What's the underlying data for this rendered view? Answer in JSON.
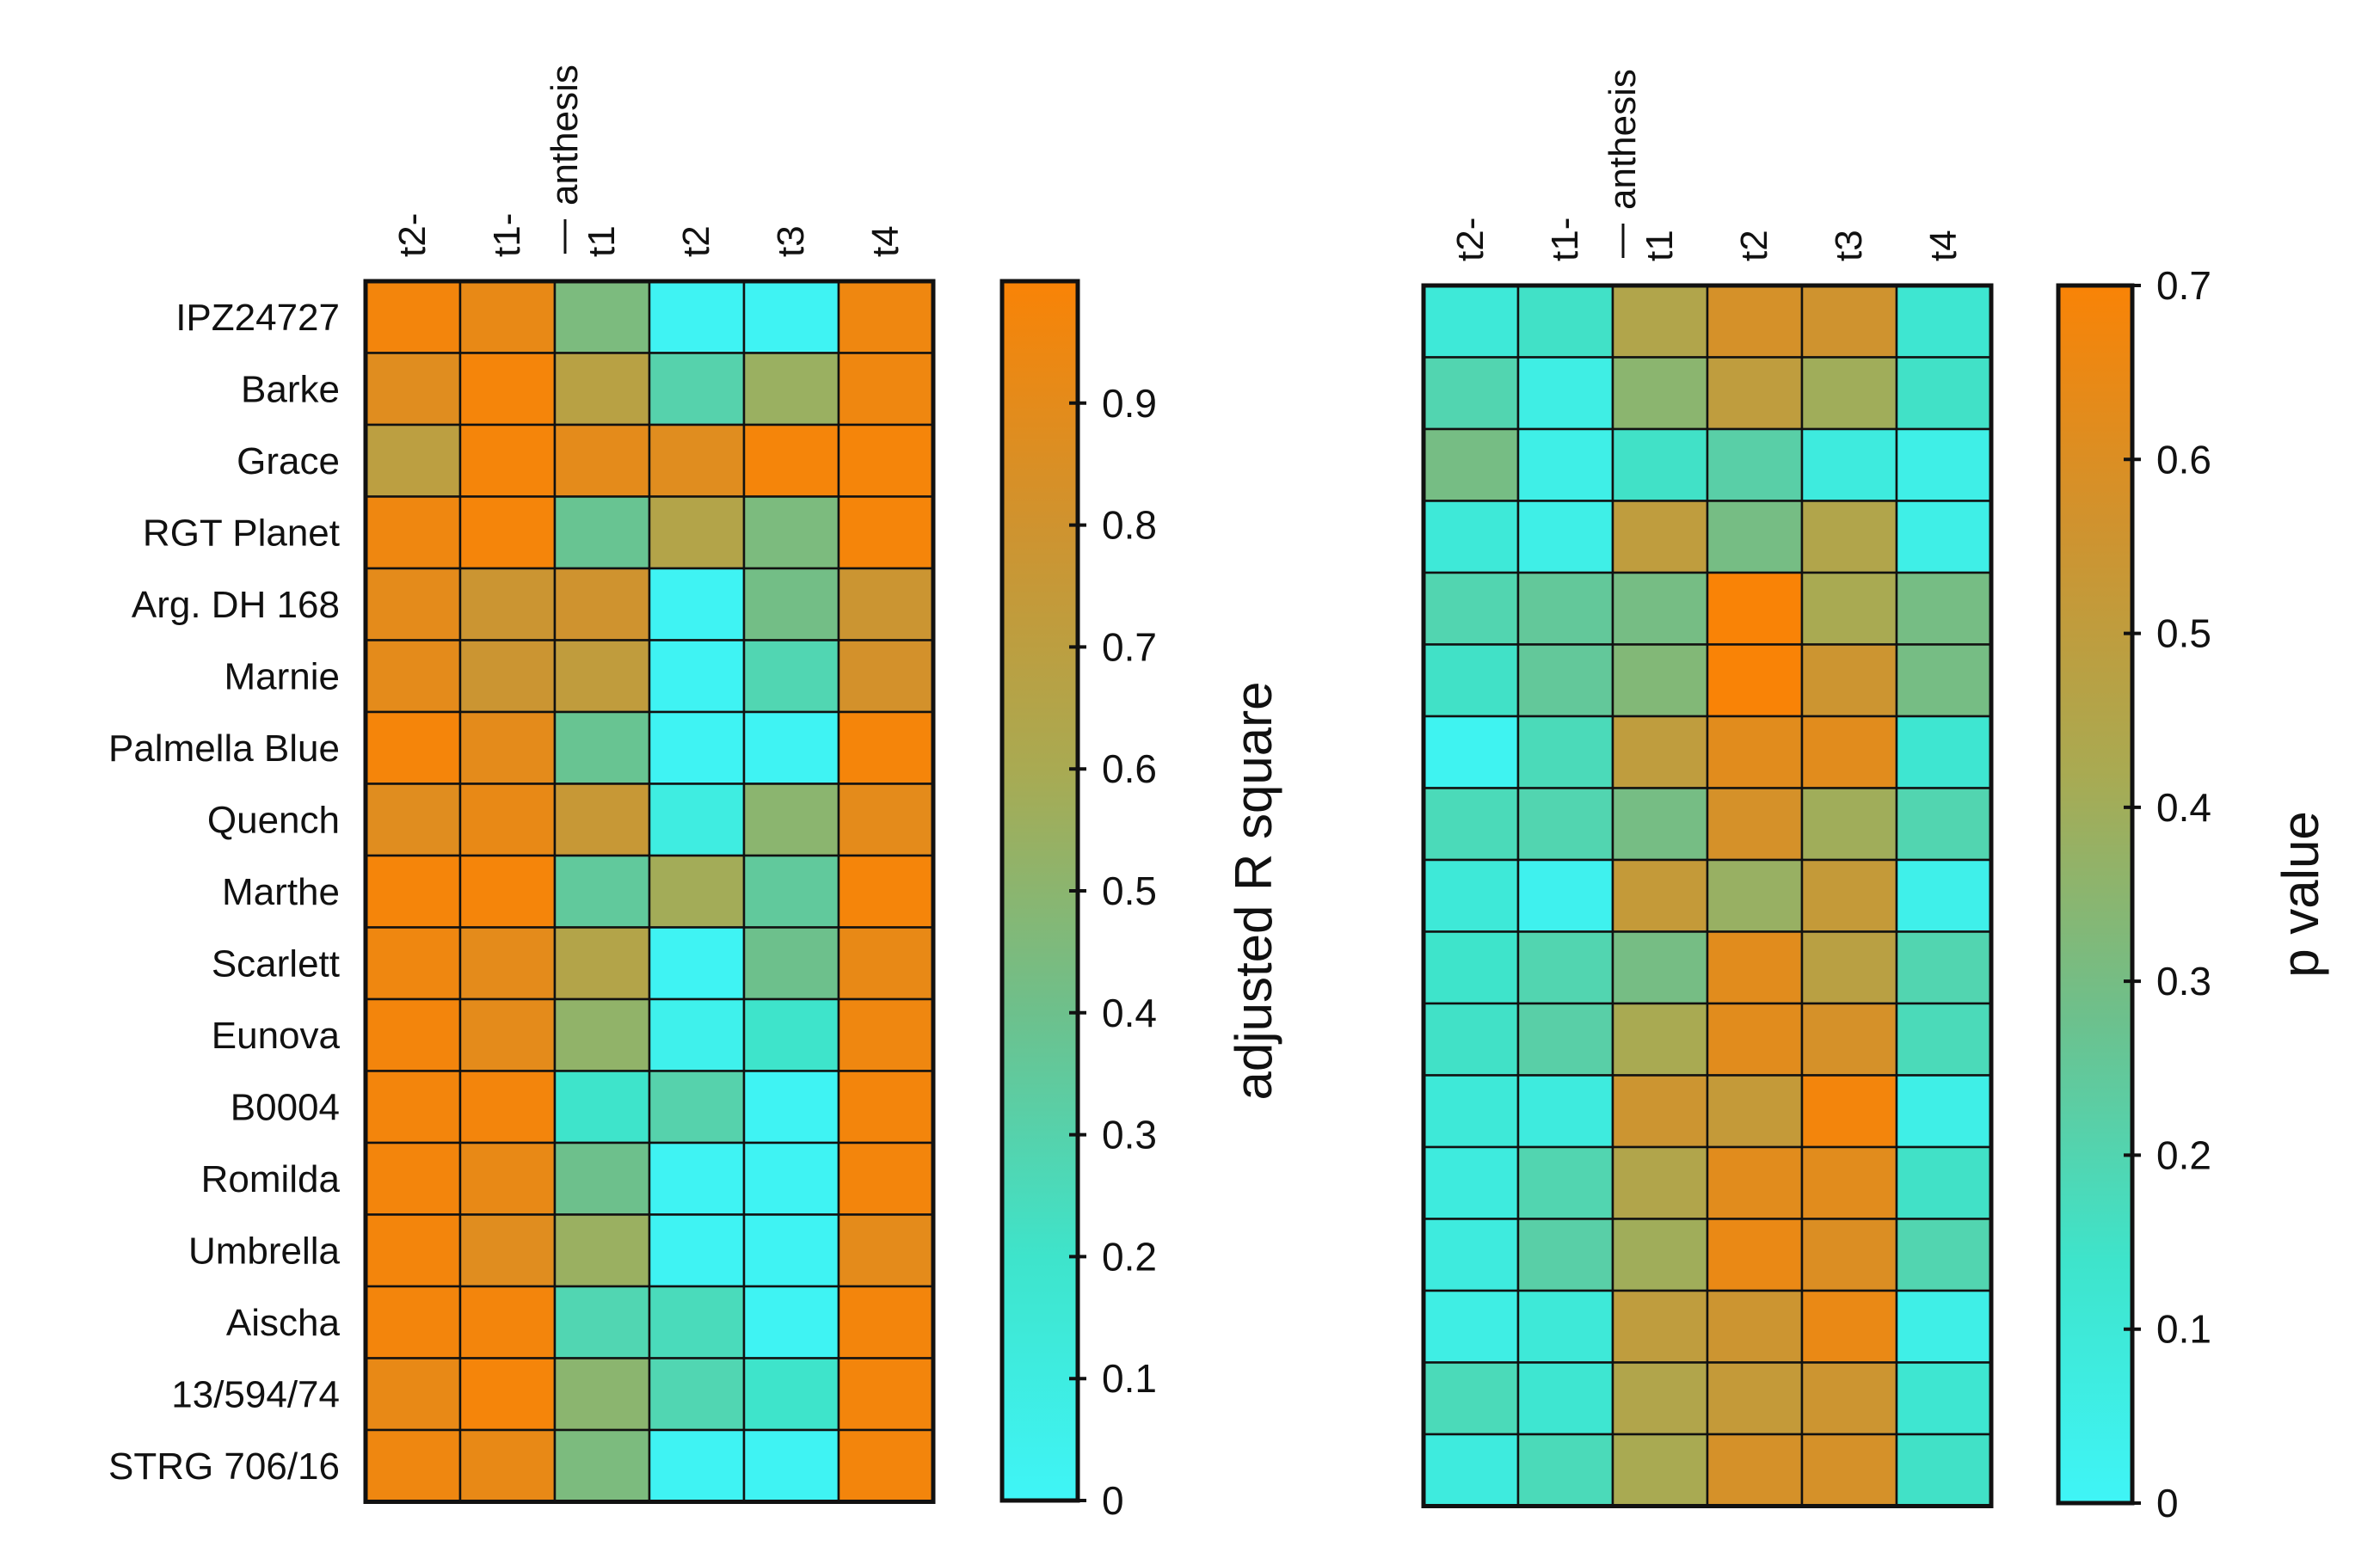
{
  "chart_data": [
    {
      "type": "heatmap",
      "title": "",
      "rows": [
        "IPZ24727",
        "Barke",
        "Grace",
        "RGT Planet",
        "Arg. DH 168",
        "Marnie",
        "Palmella Blue",
        "Quench",
        "Marthe",
        "Scarlett",
        "Eunova",
        "B0004",
        "Romilda",
        "Umbrella",
        "Aischa",
        "13/594/74",
        "STRG 706/16"
      ],
      "columns": [
        "t2-",
        "t1-",
        "t1",
        "t2",
        "t3",
        "t4"
      ],
      "marker_label": "anthesis",
      "values": [
        [
          0.97,
          0.92,
          0.45,
          0.02,
          0.02,
          0.95
        ],
        [
          0.88,
          0.98,
          0.68,
          0.3,
          0.55,
          0.95
        ],
        [
          0.7,
          0.98,
          0.9,
          0.88,
          0.98,
          0.98
        ],
        [
          0.95,
          0.98,
          0.38,
          0.65,
          0.45,
          0.98
        ],
        [
          0.9,
          0.78,
          0.8,
          0.02,
          0.42,
          0.78
        ],
        [
          0.9,
          0.78,
          0.72,
          0.02,
          0.28,
          0.82
        ],
        [
          0.98,
          0.9,
          0.38,
          0.02,
          0.02,
          0.98
        ],
        [
          0.88,
          0.92,
          0.76,
          0.1,
          0.5,
          0.9
        ],
        [
          0.98,
          0.98,
          0.35,
          0.58,
          0.35,
          0.98
        ],
        [
          0.95,
          0.9,
          0.65,
          0.02,
          0.4,
          0.92
        ],
        [
          0.97,
          0.9,
          0.52,
          0.05,
          0.2,
          0.95
        ],
        [
          0.97,
          0.97,
          0.2,
          0.3,
          0.02,
          0.97
        ],
        [
          0.97,
          0.92,
          0.4,
          0.02,
          0.02,
          0.97
        ],
        [
          0.97,
          0.88,
          0.55,
          0.02,
          0.02,
          0.9
        ],
        [
          0.97,
          0.97,
          0.28,
          0.25,
          0.02,
          0.97
        ],
        [
          0.92,
          0.98,
          0.5,
          0.28,
          0.2,
          0.97
        ],
        [
          0.95,
          0.92,
          0.45,
          0.02,
          0.02,
          0.97
        ]
      ],
      "colorbar": {
        "label": "adjusted R square",
        "range": [
          0,
          1
        ],
        "ticks": [
          0,
          0.1,
          0.2,
          0.3,
          0.4,
          0.5,
          0.6,
          0.7,
          0.8,
          0.9
        ],
        "tick_labels": [
          "0",
          "0.1",
          "0.2",
          "0.3",
          "0.4",
          "0.5",
          "0.6",
          "0.7",
          "0.8",
          "0.9"
        ],
        "colors": [
          "#3ff5f7",
          "#3ee4cb",
          "#6dc08c",
          "#a9aa52",
          "#cf932f",
          "#f98306"
        ]
      }
    },
    {
      "type": "heatmap",
      "title": "",
      "rows": [
        "IPZ24727",
        "Barke",
        "Grace",
        "RGT Planet",
        "Arg. DH 168",
        "Marnie",
        "Palmella Blue",
        "Quench",
        "Marthe",
        "Scarlett",
        "Eunova",
        "B0004",
        "Romilda",
        "Umbrella",
        "Aischa",
        "13/594/74",
        "STRG 706/16"
      ],
      "columns": [
        "t2-",
        "t1-",
        "t1",
        "t2",
        "t3",
        "t4"
      ],
      "marker_label": "anthesis",
      "values": [
        [
          0.1,
          0.15,
          0.45,
          0.58,
          0.56,
          0.12
        ],
        [
          0.2,
          0.06,
          0.35,
          0.5,
          0.4,
          0.15
        ],
        [
          0.3,
          0.05,
          0.15,
          0.22,
          0.08,
          0.05
        ],
        [
          0.1,
          0.05,
          0.5,
          0.3,
          0.45,
          0.05
        ],
        [
          0.2,
          0.25,
          0.3,
          0.7,
          0.42,
          0.3
        ],
        [
          0.15,
          0.25,
          0.33,
          0.7,
          0.55,
          0.3
        ],
        [
          0.02,
          0.18,
          0.5,
          0.62,
          0.62,
          0.12
        ],
        [
          0.18,
          0.2,
          0.3,
          0.58,
          0.4,
          0.2
        ],
        [
          0.1,
          0.03,
          0.52,
          0.38,
          0.52,
          0.04
        ],
        [
          0.14,
          0.2,
          0.3,
          0.62,
          0.48,
          0.2
        ],
        [
          0.15,
          0.22,
          0.42,
          0.62,
          0.58,
          0.18
        ],
        [
          0.1,
          0.08,
          0.55,
          0.52,
          0.68,
          0.05
        ],
        [
          0.08,
          0.2,
          0.45,
          0.62,
          0.62,
          0.15
        ],
        [
          0.08,
          0.22,
          0.4,
          0.65,
          0.6,
          0.2
        ],
        [
          0.06,
          0.1,
          0.5,
          0.55,
          0.65,
          0.05
        ],
        [
          0.18,
          0.12,
          0.45,
          0.52,
          0.55,
          0.12
        ],
        [
          0.08,
          0.18,
          0.42,
          0.58,
          0.58,
          0.15
        ]
      ],
      "colorbar": {
        "label": "p value",
        "range": [
          0,
          0.7
        ],
        "ticks": [
          0,
          0.1,
          0.2,
          0.3,
          0.4,
          0.5,
          0.6,
          0.7
        ],
        "tick_labels": [
          "0",
          "0.1",
          "0.2",
          "0.3",
          "0.4",
          "0.5",
          "0.6",
          "0.7"
        ],
        "colors": [
          "#3ff5f7",
          "#3ee4cb",
          "#6dc08c",
          "#a9aa52",
          "#cf932f",
          "#f98306"
        ]
      }
    }
  ]
}
